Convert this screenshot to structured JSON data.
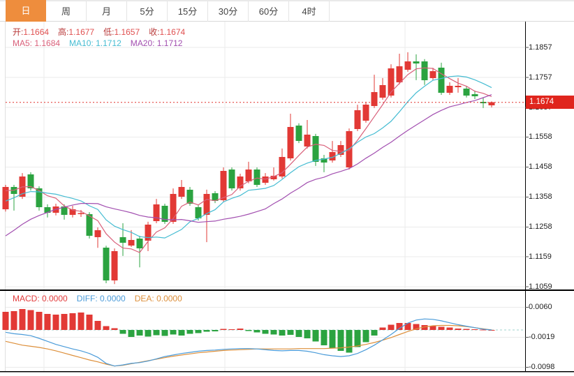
{
  "toolbar": {
    "tabs": [
      {
        "name": "tab-day",
        "label": "日",
        "active": true
      },
      {
        "name": "tab-week",
        "label": "周",
        "active": false
      },
      {
        "name": "tab-month",
        "label": "月",
        "active": false
      },
      {
        "name": "tab-5min",
        "label": "5分",
        "active": false
      },
      {
        "name": "tab-15min",
        "label": "15分",
        "active": false
      },
      {
        "name": "tab-30min",
        "label": "30分",
        "active": false
      },
      {
        "name": "tab-60min",
        "label": "60分",
        "active": false
      },
      {
        "name": "tab-4hour",
        "label": "4时",
        "active": false
      }
    ],
    "active_tab_bg": "#ee8d3d"
  },
  "legend": {
    "ohlc": [
      {
        "key": "open",
        "label": "开",
        "value": "1.1664"
      },
      {
        "key": "high",
        "label": "高",
        "value": "1.1677"
      },
      {
        "key": "low",
        "label": "低",
        "value": "1.1657"
      },
      {
        "key": "close",
        "label": "收",
        "value": "1.1674"
      }
    ],
    "ohlc_label_color": "#b93b3b",
    "ohlc_value_color": "#e05050",
    "ma": [
      {
        "key": "ma5",
        "label": "MA5",
        "value": "1.1684",
        "color": "#d9607a"
      },
      {
        "key": "ma10",
        "label": "MA10",
        "value": "1.1712",
        "color": "#45bcd2"
      },
      {
        "key": "ma20",
        "label": "MA20",
        "value": "1.1712",
        "color": "#a24fb0"
      }
    ]
  },
  "macd_legend": [
    {
      "key": "macd",
      "label": "MACD",
      "value": "0.0000",
      "color": "#e23b3b"
    },
    {
      "key": "diff",
      "label": "DIFF",
      "value": "0.0000",
      "color": "#4a9bd9"
    },
    {
      "key": "dea",
      "label": "DEA",
      "value": "0.0000",
      "color": "#dd8f3a"
    }
  ],
  "price_axis": {
    "labels": [
      "1.1857",
      "1.1757",
      "1.1657",
      "1.1558",
      "1.1458",
      "1.1358",
      "1.1258",
      "1.1159",
      "1.1059"
    ],
    "values": [
      1.1857,
      1.1757,
      1.1657,
      1.1558,
      1.1458,
      1.1358,
      1.1258,
      1.1159,
      1.1059
    ],
    "current_label": "1.1674",
    "current_value": 1.1674,
    "badge_color": "#e0251d"
  },
  "macd_axis": {
    "labels": [
      "0.0060",
      "-0.0019",
      "-0.0098"
    ],
    "values": [
      0.006,
      -0.0019,
      -0.0098
    ]
  },
  "colors": {
    "up": "#e23935",
    "down": "#2ba340",
    "grid": "#ebebeb",
    "border": "#000000",
    "dotted_price_line": "#e0312b",
    "zero_dash": "#9fd3cf",
    "ma5": "#d9607a",
    "ma10": "#45bcd2",
    "ma20": "#a24fb0",
    "diff_line": "#4a9bd9",
    "dea_line": "#dd8f3a"
  },
  "chart_data": {
    "type": "candlestick",
    "title": "",
    "x_count": 59,
    "grid": true,
    "legend_position": "top-left",
    "price_axis_ticks": [
      1.1857,
      1.1757,
      1.1657,
      1.1558,
      1.1458,
      1.1358,
      1.1258,
      1.1159,
      1.1059
    ],
    "current_price": 1.1674,
    "last_bar": {
      "open": 1.1664,
      "high": 1.1677,
      "low": 1.1657,
      "close": 1.1674
    },
    "candles_ohlc_order": "open,high,low,close",
    "candles": [
      [
        1.1317,
        1.1399,
        1.131,
        1.1392
      ],
      [
        1.1392,
        1.1399,
        1.1313,
        1.1369
      ],
      [
        1.1359,
        1.1438,
        1.1352,
        1.1427
      ],
      [
        1.1434,
        1.1441,
        1.138,
        1.1387
      ],
      [
        1.1387,
        1.1394,
        1.1313,
        1.1324
      ],
      [
        1.1324,
        1.1334,
        1.129,
        1.1306
      ],
      [
        1.1306,
        1.1336,
        1.1297,
        1.1327
      ],
      [
        1.1327,
        1.1334,
        1.1283,
        1.1299
      ],
      [
        1.1299,
        1.1329,
        1.129,
        1.1317
      ],
      [
        1.1301,
        1.1315,
        1.1292,
        1.1305
      ],
      [
        1.1301,
        1.1308,
        1.122,
        1.1229
      ],
      [
        1.1224,
        1.1257,
        1.1189,
        1.1248
      ],
      [
        1.1189,
        1.1196,
        1.1071,
        1.108
      ],
      [
        1.108,
        1.1187,
        1.1068,
        1.1178
      ],
      [
        1.1224,
        1.1271,
        1.1162,
        1.1206
      ],
      [
        1.1196,
        1.1248,
        1.1192,
        1.1215
      ],
      [
        1.122,
        1.1229,
        1.1124,
        1.1187
      ],
      [
        1.1213,
        1.1276,
        1.1178,
        1.1266
      ],
      [
        1.1278,
        1.1352,
        1.1271,
        1.1334
      ],
      [
        1.1329,
        1.1336,
        1.1269,
        1.1276
      ],
      [
        1.1276,
        1.1387,
        1.1269,
        1.1369
      ],
      [
        1.1359,
        1.1415,
        1.1352,
        1.1392
      ],
      [
        1.1383,
        1.1392,
        1.1329,
        1.1336
      ],
      [
        1.1324,
        1.1331,
        1.128,
        1.1287
      ],
      [
        1.1299,
        1.1383,
        1.1208,
        1.1369
      ],
      [
        1.1371,
        1.1378,
        1.1338,
        1.1345
      ],
      [
        1.1348,
        1.1457,
        1.1341,
        1.1445
      ],
      [
        1.145,
        1.1457,
        1.138,
        1.1387
      ],
      [
        1.1387,
        1.1436,
        1.138,
        1.1427
      ],
      [
        1.1411,
        1.1476,
        1.1404,
        1.145
      ],
      [
        1.145,
        1.1457,
        1.1392,
        1.1399
      ],
      [
        1.1406,
        1.1438,
        1.1399,
        1.1427
      ],
      [
        1.1417,
        1.1457,
        1.1413,
        1.1429
      ],
      [
        1.1427,
        1.152,
        1.142,
        1.1492
      ],
      [
        1.1487,
        1.1636,
        1.148,
        1.1592
      ],
      [
        1.1597,
        1.1604,
        1.1538,
        1.1545
      ],
      [
        1.1527,
        1.1615,
        1.152,
        1.1566
      ],
      [
        1.1562,
        1.1569,
        1.1462,
        1.1476
      ],
      [
        1.1487,
        1.1499,
        1.1441,
        1.1473
      ],
      [
        1.148,
        1.1545,
        1.1473,
        1.1508
      ],
      [
        1.1499,
        1.1545,
        1.1492,
        1.1531
      ],
      [
        1.1457,
        1.1587,
        1.145,
        1.1578
      ],
      [
        1.1585,
        1.1666,
        1.1578,
        1.1648
      ],
      [
        1.1613,
        1.1676,
        1.1606,
        1.1666
      ],
      [
        1.1662,
        1.1766,
        1.1655,
        1.1708
      ],
      [
        1.169,
        1.1755,
        1.1683,
        1.1732
      ],
      [
        1.1697,
        1.1801,
        1.169,
        1.1787
      ],
      [
        1.1741,
        1.1836,
        1.1734,
        1.1794
      ],
      [
        1.1783,
        1.1841,
        1.1776,
        1.1811
      ],
      [
        1.1811,
        1.1834,
        1.1748,
        1.1804
      ],
      [
        1.1811,
        1.1818,
        1.1732,
        1.1748
      ],
      [
        1.1755,
        1.1789,
        1.1748,
        1.1778
      ],
      [
        1.1789,
        1.1806,
        1.1699,
        1.1706
      ],
      [
        1.1706,
        1.1741,
        1.1699,
        1.1729
      ],
      [
        1.1724,
        1.1755,
        1.1706,
        1.1729
      ],
      [
        1.172,
        1.1727,
        1.169,
        1.1697
      ],
      [
        1.1701,
        1.1713,
        1.1685,
        1.1694
      ],
      [
        1.1676,
        1.169,
        1.1655,
        1.1671
      ],
      [
        1.1664,
        1.1677,
        1.1657,
        1.1674
      ]
    ],
    "ma_periods": [
      5,
      10,
      20
    ],
    "ma_seed_closes": [
      1.098,
      1.1,
      1.1025,
      1.105,
      1.1075,
      1.11,
      1.1125,
      1.115,
      1.1175,
      1.12,
      1.123,
      1.126,
      1.129,
      1.1315,
      1.1335,
      1.135,
      1.1362,
      1.1372,
      1.1382,
      1.139
    ],
    "macd": {
      "axis_ticks": [
        0.006,
        -0.0019,
        -0.0098
      ],
      "bar": [
        0.0048,
        0.005,
        0.0055,
        0.0052,
        0.0048,
        0.0042,
        0.004,
        0.0042,
        0.0044,
        0.0046,
        0.004,
        0.0024,
        0.001,
        0.0005,
        -0.001,
        -0.0018,
        -0.0015,
        -0.0017,
        -0.0014,
        -0.0016,
        -0.0012,
        -0.0015,
        -0.001,
        -0.0008,
        -0.0005,
        -0.0004,
        0.0003,
        0.0002,
        0.0004,
        -0.0003,
        -0.0006,
        -0.001,
        -0.0012,
        -0.0015,
        -0.0013,
        -0.0018,
        -0.0022,
        -0.003,
        -0.004,
        -0.0048,
        -0.0055,
        -0.006,
        -0.0045,
        -0.0032,
        -0.0015,
        0.0006,
        0.0014,
        0.0018,
        0.0018,
        0.0016,
        0.0013,
        0.001,
        0.0008,
        0.0006,
        0.0004,
        0.0003,
        0.0002,
        0.0001,
        0.0
      ],
      "diff": [
        -0.0006,
        -0.001,
        -0.0012,
        -0.0015,
        -0.0022,
        -0.003,
        -0.0038,
        -0.0044,
        -0.005,
        -0.0055,
        -0.0062,
        -0.0072,
        -0.0088,
        -0.0095,
        -0.0092,
        -0.0088,
        -0.0086,
        -0.0082,
        -0.0076,
        -0.007,
        -0.0066,
        -0.0062,
        -0.0059,
        -0.0056,
        -0.0054,
        -0.0053,
        -0.0051,
        -0.005,
        -0.0049,
        -0.0049,
        -0.005,
        -0.0052,
        -0.0054,
        -0.0055,
        -0.0054,
        -0.0054,
        -0.0056,
        -0.006,
        -0.0065,
        -0.0068,
        -0.007,
        -0.0068,
        -0.0062,
        -0.0052,
        -0.004,
        -0.0026,
        -0.0012,
        0.0004,
        0.0018,
        0.0026,
        0.0029,
        0.0028,
        0.0024,
        0.0019,
        0.0014,
        0.001,
        0.0006,
        0.0002,
        0.0
      ],
      "dea": [
        -0.003,
        -0.0035,
        -0.004,
        -0.0043,
        -0.0046,
        -0.005,
        -0.0055,
        -0.0061,
        -0.0067,
        -0.0073,
        -0.0079,
        -0.0084,
        -0.009,
        -0.0095,
        -0.0093,
        -0.0089,
        -0.0085,
        -0.0081,
        -0.0077,
        -0.0073,
        -0.0069,
        -0.0066,
        -0.0063,
        -0.006,
        -0.0058,
        -0.0056,
        -0.0054,
        -0.0053,
        -0.0052,
        -0.0051,
        -0.005,
        -0.005,
        -0.005,
        -0.005,
        -0.005,
        -0.0049,
        -0.0049,
        -0.0049,
        -0.0049,
        -0.0048,
        -0.0047,
        -0.0045,
        -0.0042,
        -0.0038,
        -0.0033,
        -0.0027,
        -0.002,
        -0.0012,
        -0.0004,
        0.0003,
        0.0008,
        0.0011,
        0.0012,
        0.0012,
        0.0011,
        0.0009,
        0.0006,
        0.0003,
        0.0
      ]
    }
  }
}
